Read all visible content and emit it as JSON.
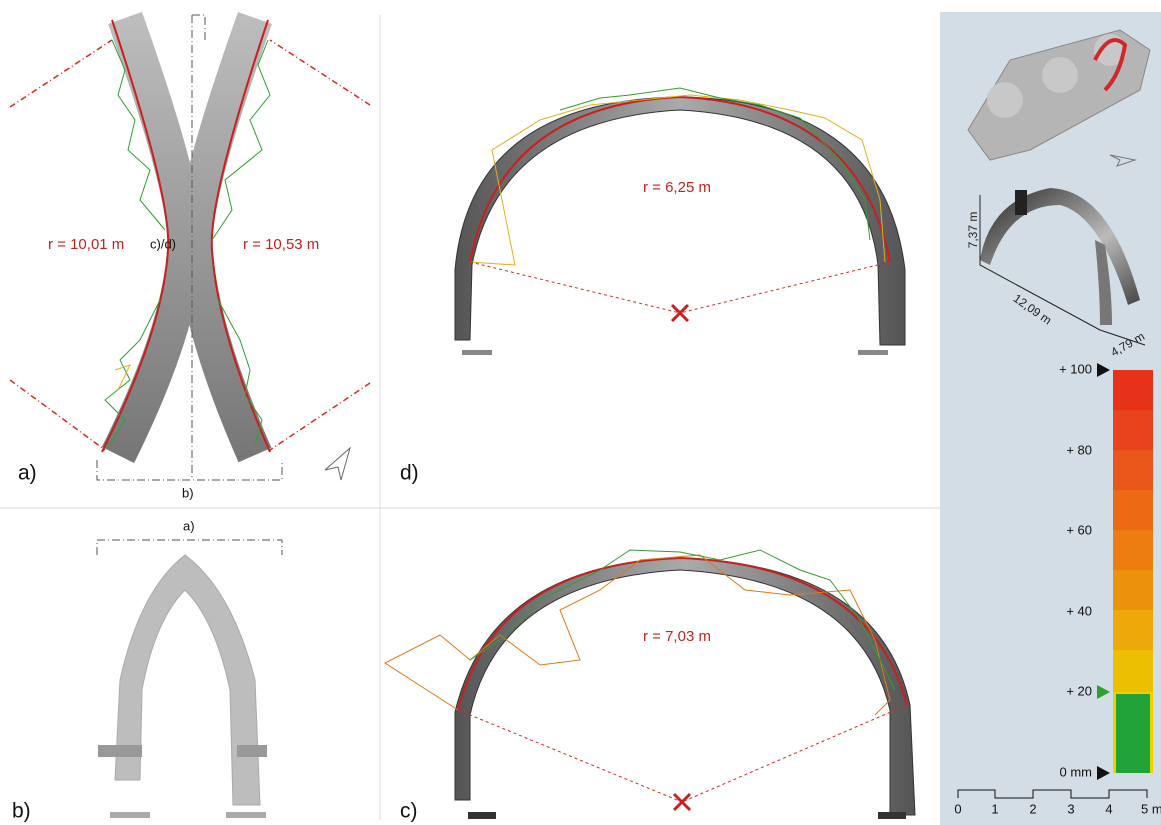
{
  "panels": {
    "a": {
      "label": "a)",
      "radius_left": "r = 10,01 m",
      "radius_right": "r = 10,53 m",
      "section_ref": "c)/d)",
      "cut_ref": "b)"
    },
    "b": {
      "label": "b)",
      "cut_ref": "a)"
    },
    "d": {
      "label": "d)",
      "radius": "r = 6,25 m"
    },
    "c": {
      "label": "c)",
      "radius": "r = 7,03 m"
    }
  },
  "model": {
    "height": "7,37 m",
    "length": "12,09 m",
    "width": "4,79 m"
  },
  "deviation_scale": {
    "labels": [
      "+ 100",
      "+ 80",
      "+ 60",
      "+ 40",
      "+ 20",
      "0 mm"
    ]
  },
  "scale_bar": {
    "labels": [
      "0",
      "1",
      "2",
      "3",
      "4",
      "5 m"
    ]
  }
}
